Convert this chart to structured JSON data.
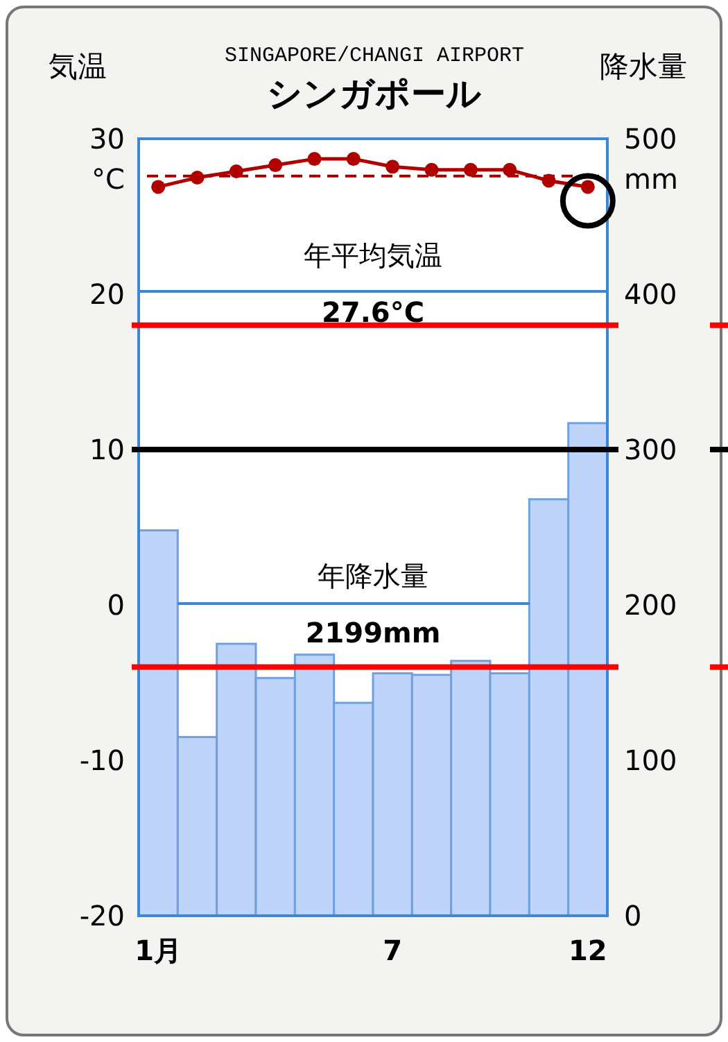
{
  "chart_data": {
    "type": "bar",
    "title": "シンガポール",
    "subtitle": "SINGAPORE/CHANGI AIRPORT",
    "ylabel": "気温",
    "y2label": "降水量",
    "categories": [
      "1月",
      null,
      null,
      null,
      null,
      null,
      "7",
      null,
      null,
      null,
      null,
      "12"
    ],
    "series": [
      {
        "axis": "y2",
        "color": "#bfd4fb",
        "values": [
          248,
          115,
          175,
          153,
          168,
          137,
          156,
          155,
          164,
          156,
          268,
          317
        ]
      },
      {
        "type": "line",
        "axis": "y",
        "color": "#b00000",
        "marker": "circle",
        "values": [
          26.9,
          27.5,
          27.9,
          28.3,
          28.7,
          28.7,
          28.2,
          28.0,
          28.0,
          28.0,
          27.3,
          26.9
        ]
      }
    ],
    "ylim": [
      -20,
      30
    ],
    "yticks": [
      -20,
      -10,
      0,
      10,
      20,
      30
    ],
    "y2lim": [
      0,
      500
    ],
    "y2ticks": [
      0,
      100,
      200,
      300,
      400,
      500
    ],
    "ref_lines": [
      {
        "axis": "y",
        "value": 27.6,
        "color": "#a00000",
        "line_style": "dashed"
      },
      {
        "axis": "y",
        "value": 18,
        "color": "#ff0000",
        "line_style": "solid"
      },
      {
        "axis": "y",
        "value": 10,
        "color": "#000000",
        "line_style": "solid"
      },
      {
        "axis": "y",
        "value": -4,
        "color": "#ff0000",
        "line_style": "solid"
      }
    ],
    "annotations": [
      "年平均気温",
      "27.6°C",
      "年降水量",
      "2199mm",
      "°C",
      "mm"
    ]
  }
}
